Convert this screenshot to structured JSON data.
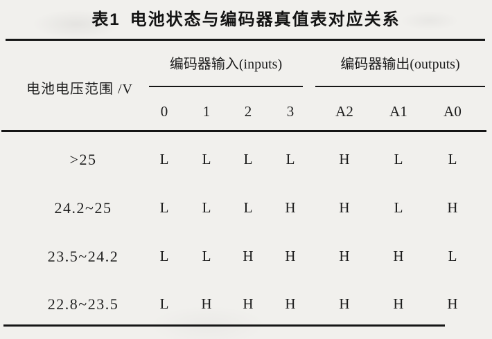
{
  "title": {
    "prefix": "表1",
    "text": "电池状态与编码器真值表对应关系"
  },
  "table": {
    "row_header": "电池电压范围 /V",
    "groups": {
      "inputs_label": "编码器输入(inputs)",
      "outputs_label": "编码器输出(outputs)"
    },
    "columns": {
      "inputs": [
        "0",
        "1",
        "2",
        "3"
      ],
      "outputs": [
        "A2",
        "A1",
        "A0"
      ]
    },
    "rows": [
      {
        "range": ">25",
        "inputs": [
          "L",
          "L",
          "L",
          "L"
        ],
        "outputs": [
          "H",
          "L",
          "L"
        ]
      },
      {
        "range": "24.2~25",
        "inputs": [
          "L",
          "L",
          "L",
          "H"
        ],
        "outputs": [
          "H",
          "L",
          "H"
        ]
      },
      {
        "range": "23.5~24.2",
        "inputs": [
          "L",
          "L",
          "H",
          "H"
        ],
        "outputs": [
          "H",
          "H",
          "L"
        ]
      },
      {
        "range": "22.8~23.5",
        "inputs": [
          "L",
          "H",
          "H",
          "H"
        ],
        "outputs": [
          "H",
          "H",
          "H"
        ]
      }
    ]
  },
  "colors": {
    "background": "#f1f0ed",
    "text": "#1c1c1c",
    "rule": "#161616"
  }
}
